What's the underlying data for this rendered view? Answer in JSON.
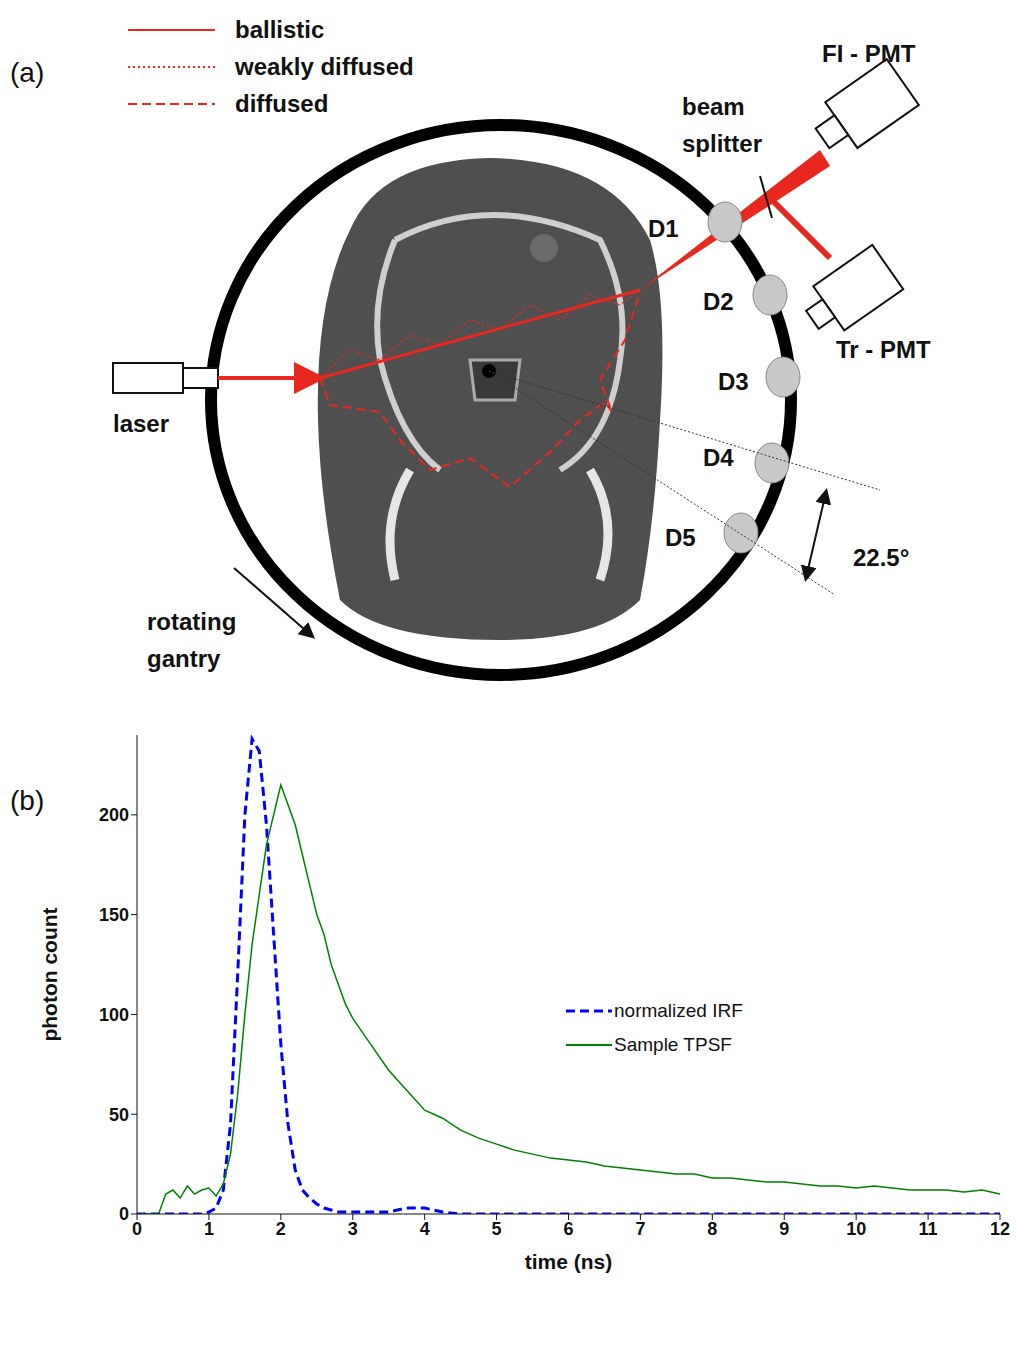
{
  "diagram": {
    "panel_labels": [
      "(a)",
      "(b)"
    ],
    "legend": [
      {
        "label": "ballistic",
        "line_style": "solid"
      },
      {
        "label": "weakly diffused",
        "line_style": "dotted"
      },
      {
        "label": "diffused",
        "line_style": "dashed"
      }
    ],
    "source": "laser",
    "gantry": [
      "rotating",
      "gantry"
    ],
    "splitter": [
      "beam",
      "splitter"
    ],
    "detectors": [
      "D1",
      "D2",
      "D3",
      "D4",
      "D5"
    ],
    "pmts": [
      "FI - PMT",
      "Tr - PMT"
    ],
    "angle": "22.5°"
  },
  "chart_data": {
    "type": "line",
    "x_label": "time (ns)",
    "y_label": "photon count",
    "xlim": [
      0,
      12
    ],
    "xticks": [
      0,
      1,
      2,
      3,
      4,
      5,
      6,
      7,
      8,
      9,
      10,
      11,
      12
    ],
    "ylim": [
      0,
      240
    ],
    "yticks": [
      0,
      50,
      100,
      150,
      200
    ],
    "grid": false,
    "legend": "right",
    "x": [
      0,
      0.1,
      0.2,
      0.3,
      0.4,
      0.5,
      0.6,
      0.7,
      0.8,
      0.9,
      1.0,
      1.1,
      1.2,
      1.3,
      1.4,
      1.5,
      1.6,
      1.7,
      1.8,
      1.9,
      2.0,
      2.1,
      2.2,
      2.3,
      2.4,
      2.5,
      2.6,
      2.7,
      2.8,
      2.9,
      3.0,
      3.25,
      3.5,
      3.75,
      4.0,
      4.25,
      4.5,
      4.75,
      5.0,
      5.25,
      5.5,
      5.75,
      6.0,
      6.25,
      6.5,
      6.75,
      7.0,
      7.25,
      7.5,
      7.75,
      8.0,
      8.25,
      8.5,
      8.75,
      9.0,
      9.25,
      9.5,
      9.75,
      10.0,
      10.25,
      10.5,
      10.75,
      11.0,
      11.25,
      11.5,
      11.75,
      12.0
    ],
    "series": [
      {
        "name": "normalized IRF",
        "color": "#0000ff",
        "line_style": "dashed",
        "values": [
          0,
          0,
          0,
          0,
          0,
          0,
          0,
          0,
          0,
          0,
          1,
          3,
          12,
          45,
          120,
          200,
          238,
          232,
          195,
          140,
          85,
          45,
          22,
          12,
          8,
          5,
          3,
          2,
          1,
          1,
          1,
          1,
          1,
          3,
          3,
          1,
          0,
          0,
          0,
          0,
          0,
          0,
          0,
          0,
          0,
          0,
          0,
          0,
          0,
          0,
          0,
          0,
          0,
          0,
          0,
          0,
          0,
          0,
          0,
          0,
          0,
          0,
          0,
          0,
          0,
          0,
          0
        ]
      },
      {
        "name": "Sample TPSF",
        "color": "#008000",
        "line_style": "solid",
        "values": [
          0,
          0,
          0,
          0,
          10,
          12,
          8,
          14,
          10,
          12,
          13,
          9,
          15,
          30,
          60,
          100,
          135,
          160,
          185,
          200,
          215,
          205,
          195,
          180,
          165,
          150,
          140,
          125,
          115,
          105,
          98,
          85,
          72,
          62,
          52,
          48,
          42,
          38,
          35,
          32,
          30,
          28,
          27,
          26,
          24,
          23,
          22,
          21,
          20,
          20,
          18,
          18,
          17,
          16,
          16,
          15,
          14,
          14,
          13,
          14,
          13,
          12,
          12,
          12,
          11,
          12,
          10
        ]
      }
    ]
  }
}
